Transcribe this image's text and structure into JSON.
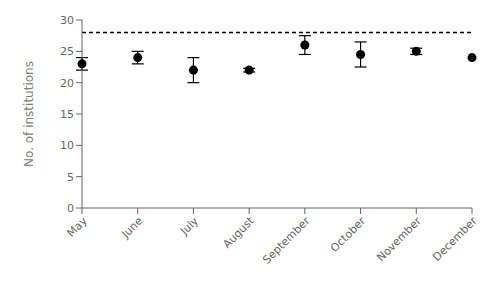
{
  "chart_data": {
    "type": "scatter",
    "categories": [
      "May",
      "June",
      "July",
      "August",
      "September",
      "October",
      "November",
      "December"
    ],
    "values": [
      23.0,
      24.0,
      22.0,
      22.0,
      26.0,
      24.5,
      25.0,
      24.0
    ],
    "errors": [
      1.0,
      1.0,
      2.0,
      0.3,
      1.5,
      2.0,
      0.5,
      0.0
    ],
    "ylabel": "No. of institutions",
    "ylim": [
      0,
      30
    ],
    "yticks": [
      0,
      5,
      10,
      15,
      20,
      25,
      30
    ],
    "color": "#000000",
    "marker": "circle",
    "grid": false,
    "reference_line": {
      "value": 28.0,
      "color": "#000000",
      "line_style": "dashed"
    }
  }
}
